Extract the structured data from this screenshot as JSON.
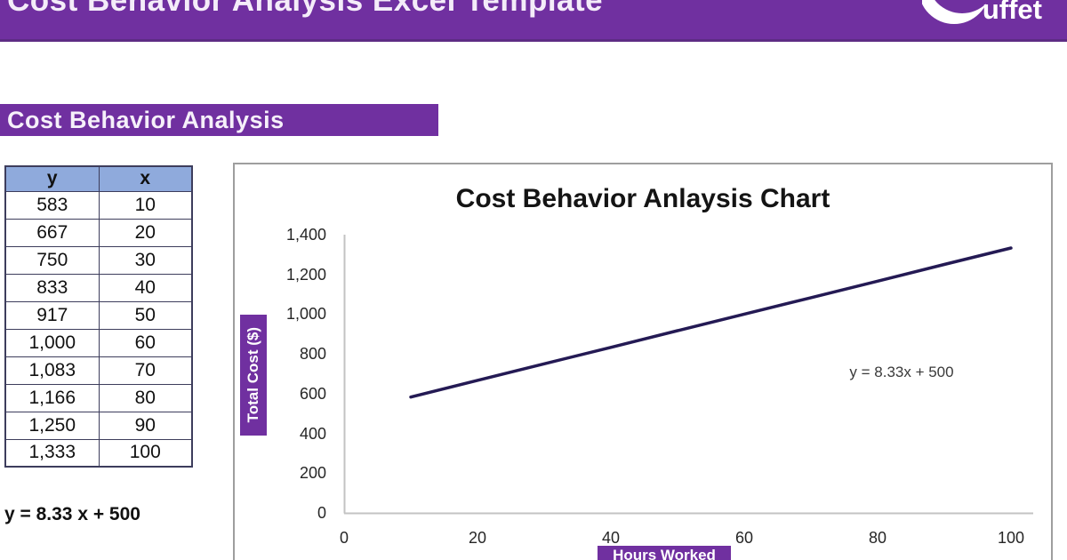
{
  "header": {
    "title": "Cost Behavior Analysis Excel Template",
    "logo_text": "uffet",
    "brand_color": "#7030A0"
  },
  "section": {
    "title": "Cost Behavior Analysis"
  },
  "table": {
    "headers": [
      "y",
      "x"
    ],
    "rows": [
      [
        "583",
        "10"
      ],
      [
        "667",
        "20"
      ],
      [
        "750",
        "30"
      ],
      [
        "833",
        "40"
      ],
      [
        "917",
        "50"
      ],
      [
        "1,000",
        "60"
      ],
      [
        "1,083",
        "70"
      ],
      [
        "1,166",
        "80"
      ],
      [
        "1,250",
        "90"
      ],
      [
        "1,333",
        "100"
      ]
    ],
    "header_fill": "#8FAADC"
  },
  "equation": "y = 8.33 x + 500",
  "chart": {
    "title": "Cost Behavior Anlaysis Chart",
    "y_axis_label": "Total Cost ($)",
    "x_axis_label": "Hours Worked",
    "annotation": "y = 8.33x + 500",
    "y_ticks": [
      "1,400",
      "1,200",
      "1,000",
      "800",
      "600",
      "400",
      "200",
      "0"
    ],
    "x_ticks": [
      "0",
      "20",
      "40",
      "60",
      "80",
      "100"
    ]
  },
  "chart_data": {
    "type": "line",
    "title": "Cost Behavior Anlaysis Chart",
    "xlabel": "Hours Worked",
    "ylabel": "Total Cost ($)",
    "x": [
      10,
      20,
      30,
      40,
      50,
      60,
      70,
      80,
      90,
      100
    ],
    "series": [
      {
        "name": "Total Cost",
        "values": [
          583,
          667,
          750,
          833,
          917,
          1000,
          1083,
          1166,
          1250,
          1333
        ]
      }
    ],
    "xlim": [
      0,
      100
    ],
    "ylim": [
      0,
      1400
    ],
    "x_tick_step": 20,
    "y_tick_step": 200,
    "trendline_equation": "y = 8.33x + 500",
    "line_color": "#241a54",
    "axis_color": "#c3c3c3",
    "grid": false,
    "legend": false
  }
}
